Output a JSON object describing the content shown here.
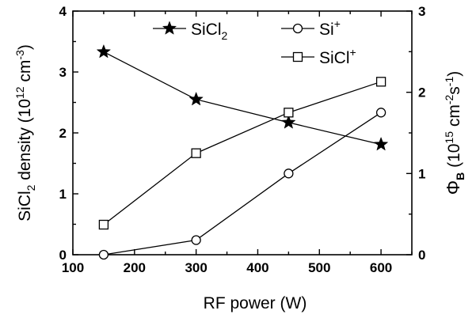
{
  "chart_data": {
    "type": "line",
    "xlabel": "RF power (W)",
    "ylabel_left": {
      "main": "SiCl",
      "sub": "2",
      "rest": " density (10",
      "sup": "12",
      "tail": " cm",
      "sup2": "-3",
      "end": ")"
    },
    "ylabel_right": {
      "main": "Φ",
      "sub": "B",
      "rest": " (10",
      "sup": "15",
      "tail": " cm",
      "sup2": "-2",
      "mid": "s",
      "sup3": "-1",
      "end": ")"
    },
    "x_ticks": [
      "100",
      "200",
      "300",
      "400",
      "500",
      "600"
    ],
    "y_left_ticks": [
      "0",
      "1",
      "2",
      "3",
      "4"
    ],
    "y_right_ticks": [
      "0",
      "1",
      "2",
      "3"
    ],
    "xlim": [
      100,
      650
    ],
    "ylim_left": [
      0,
      4
    ],
    "ylim_right": [
      0,
      3
    ],
    "x": [
      150,
      300,
      450,
      600
    ],
    "series": [
      {
        "name": "SiCl2",
        "label_main": "SiCl",
        "label_sub": "2",
        "label_sup": "",
        "axis": "left",
        "marker": "star",
        "values": [
          3.33,
          2.55,
          2.17,
          1.81
        ]
      },
      {
        "name": "Si+",
        "label_main": "Si",
        "label_sub": "",
        "label_sup": "+",
        "axis": "right",
        "marker": "circle",
        "values": [
          0.0,
          0.18,
          1.0,
          1.75
        ]
      },
      {
        "name": "SiCl+",
        "label_main": "SiCl",
        "label_sub": "",
        "label_sup": "+",
        "axis": "right",
        "marker": "square",
        "values": [
          0.37,
          1.25,
          1.75,
          2.13
        ]
      }
    ],
    "legend_position": "top"
  }
}
